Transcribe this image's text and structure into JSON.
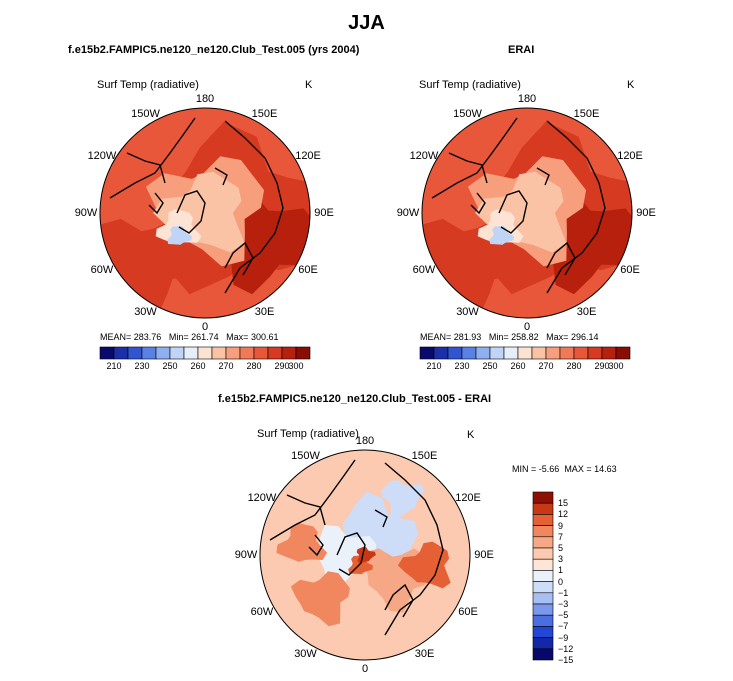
{
  "figure": {
    "title": "JJA",
    "diff_title": "f.e15b2.FAMPIC5.ne120_ne120.Club_Test.005 - ERAI"
  },
  "panels": [
    {
      "title": "f.e15b2.FAMPIC5.ne120_ne120.Club_Test.005 (yrs 2004)",
      "variable": "Surf Temp (radiative)",
      "units": "K",
      "lon_labels": [
        "180",
        "150E",
        "120E",
        "90E",
        "60E",
        "30E",
        "0",
        "30W",
        "60W",
        "90W",
        "120W",
        "150W"
      ],
      "stats": {
        "mean_label": "MEAN=",
        "mean": "283.76",
        "min_label": "Min=",
        "min": "261.74",
        "max_label": "Max=",
        "max": "300.61"
      }
    },
    {
      "title": "ERAI",
      "variable": "Surf Temp (radiative)",
      "units": "K",
      "lon_labels": [
        "180",
        "150E",
        "120E",
        "90E",
        "60E",
        "30E",
        "0",
        "30W",
        "60W",
        "90W",
        "120W",
        "150W"
      ],
      "stats": {
        "mean_label": "MEAN=",
        "mean": "281.93",
        "min_label": "Min=",
        "min": "258.82",
        "max_label": "Max=",
        "max": "296.14"
      }
    },
    {
      "title": "f.e15b2.FAMPIC5.ne120_ne120.Club_Test.005 - ERAI",
      "variable": "Surf Temp (radiative)",
      "units": "K",
      "lon_labels": [
        "180",
        "150E",
        "120E",
        "90E",
        "60E",
        "30E",
        "0",
        "30W",
        "60W",
        "90W",
        "120W",
        "150W"
      ],
      "stats": {
        "min_label": "MIN =",
        "min": "-5.66",
        "max_label": "MAX =",
        "max": "14.63"
      }
    }
  ],
  "chart_data": [
    {
      "type": "heatmap",
      "projection": "north-polar-stereographic",
      "title": "f.e15b2.FAMPIC5.ne120_ne120.Club_Test.005 (yrs 2004)",
      "variable": "Surf Temp (radiative)",
      "units": "K",
      "mean": 283.76,
      "min": 261.74,
      "max": 300.61,
      "contour_levels": [
        210,
        220,
        230,
        240,
        250,
        255,
        260,
        265,
        270,
        275,
        280,
        285,
        290,
        295,
        300
      ],
      "colorbar_ticks": [
        "210",
        "230",
        "250",
        "260",
        "270",
        "280",
        "290",
        "300"
      ]
    },
    {
      "type": "heatmap",
      "projection": "north-polar-stereographic",
      "title": "ERAI",
      "variable": "Surf Temp (radiative)",
      "units": "K",
      "mean": 281.93,
      "min": 258.82,
      "max": 296.14,
      "contour_levels": [
        210,
        220,
        230,
        240,
        250,
        255,
        260,
        265,
        270,
        275,
        280,
        285,
        290,
        295,
        300
      ],
      "colorbar_ticks": [
        "210",
        "230",
        "250",
        "260",
        "270",
        "280",
        "290",
        "300"
      ]
    },
    {
      "type": "heatmap",
      "projection": "north-polar-stereographic",
      "title": "f.e15b2.FAMPIC5.ne120_ne120.Club_Test.005 - ERAI",
      "variable": "Surf Temp (radiative)",
      "units": "K",
      "min": -5.66,
      "max": 14.63,
      "contour_levels": [
        -15,
        -12,
        -9,
        -7,
        -5,
        -3,
        -1,
        0,
        1,
        3,
        5,
        7,
        9,
        12,
        15
      ],
      "colorbar_ticks": [
        "15",
        "12",
        "9",
        "7",
        "5",
        "3",
        "1",
        "0",
        "−1",
        "−3",
        "−5",
        "−7",
        "−9",
        "−12",
        "−15"
      ]
    }
  ],
  "colors": {
    "abs_scale": [
      "#0a0a6e",
      "#1a2fa8",
      "#2f55d2",
      "#5a82e6",
      "#8fb0f0",
      "#c0d4f5",
      "#e6eefa",
      "#fde3d4",
      "#fbc3a6",
      "#f79e7d",
      "#f07a58",
      "#e8573a",
      "#d63a20",
      "#b8200e",
      "#8a0c05"
    ],
    "diff_scale": [
      "#08086a",
      "#1228a6",
      "#2446d4",
      "#4a6fe2",
      "#7a98ec",
      "#a8bff3",
      "#cddcf7",
      "#eaf1fb",
      "#fde6d8",
      "#fbcab0",
      "#f6a886",
      "#f1875f",
      "#e56035",
      "#c93815",
      "#8e1005"
    ],
    "coast": "#000000"
  }
}
